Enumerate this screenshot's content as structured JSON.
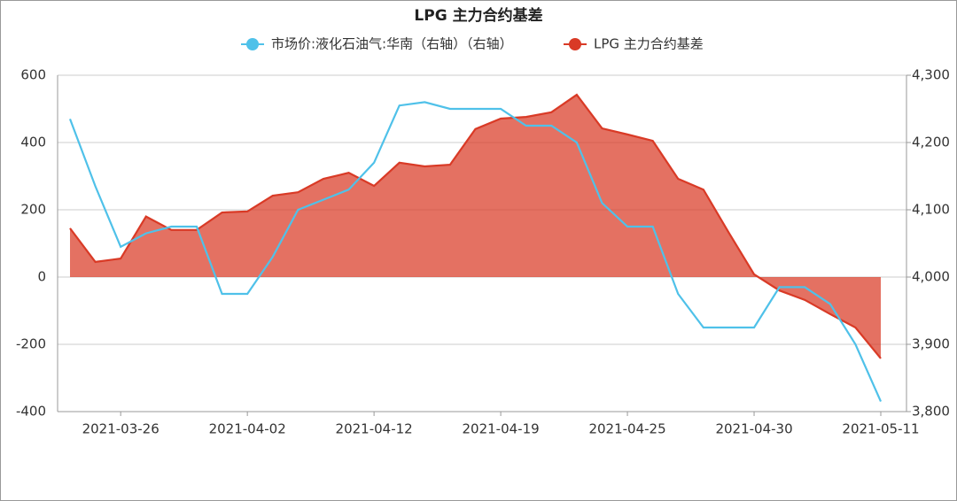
{
  "chart_data": {
    "type": "line_area",
    "title": "LPG 主力合约基差",
    "categories": [
      null,
      null,
      "2021-03-26",
      null,
      null,
      null,
      null,
      "2021-04-02",
      null,
      null,
      null,
      null,
      "2021-04-12",
      null,
      null,
      null,
      null,
      "2021-04-19",
      null,
      null,
      null,
      null,
      "2021-04-25",
      null,
      null,
      null,
      null,
      "2021-04-30",
      null,
      null,
      null,
      null,
      "2021-05-11"
    ],
    "series": [
      {
        "name": "市场价:液化石油气:华南（右轴）（右轴）",
        "color": "#4fc1e9",
        "axis": "y2",
        "values": [
          4235,
          4135,
          4045,
          4065,
          4075,
          4075,
          3975,
          3975,
          4030,
          4100,
          4115,
          4130,
          4170,
          4255,
          4260,
          4250,
          4250,
          4250,
          4225,
          4225,
          4200,
          4110,
          4075,
          4075,
          3975,
          3925,
          3925,
          3925,
          3985,
          3985,
          3960,
          3900,
          3815
        ]
      },
      {
        "name": "LPG 主力合约基差",
        "color": "#d93a26",
        "values": [
          145,
          45,
          55,
          180,
          140,
          140,
          192,
          195,
          242,
          252,
          292,
          310,
          271,
          340,
          329,
          334,
          440,
          471,
          476,
          490,
          542,
          442,
          424,
          405,
          292,
          260,
          132,
          8,
          -40,
          -68,
          -110,
          -150,
          -242
        ]
      }
    ],
    "ylim": [
      -400,
      600
    ],
    "yticks": [
      -400,
      -200,
      0,
      200,
      400,
      600
    ],
    "y2lim": [
      3800,
      4300
    ],
    "y2ticks": [
      {
        "value": 3800,
        "label": "3,800"
      },
      {
        "value": 3900,
        "label": "3,900"
      },
      {
        "value": 4000,
        "label": "4,000"
      },
      {
        "value": 4100,
        "label": "4,100"
      },
      {
        "value": 4200,
        "label": "4,200"
      },
      {
        "value": 4300,
        "label": "4,300"
      }
    ],
    "grid": true
  }
}
